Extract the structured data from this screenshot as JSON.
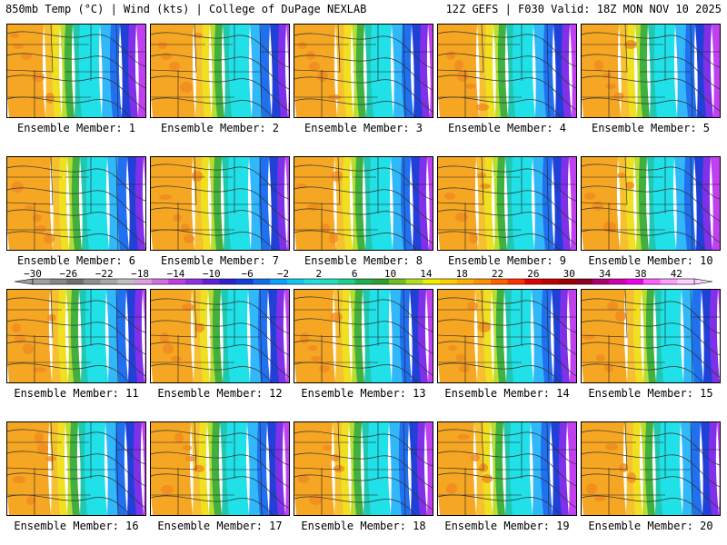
{
  "header": {
    "left": "850mb Temp (°C) | Wind (kts) | College of DuPage NEXLAB",
    "right": "12Z GEFS | F030 Valid: 18Z MON NOV 10 2025"
  },
  "colorbar": {
    "tick_labels": [
      "−30",
      "−26",
      "−22",
      "−18",
      "−14",
      "−10",
      "−6",
      "−2",
      "2",
      "6",
      "10",
      "14",
      "18",
      "22",
      "26",
      "30",
      "34",
      "38",
      "42"
    ],
    "colors": [
      "#a0a0a0",
      "#888888",
      "#707070",
      "#909090",
      "#a8a8a8",
      "#c0c0c0",
      "#e0a0e0",
      "#d070e0",
      "#c040e0",
      "#9030e0",
      "#6020d8",
      "#3020d0",
      "#1040e0",
      "#1070f0",
      "#10a0ff",
      "#10c8f0",
      "#20e0e0",
      "#20e0c0",
      "#20d090",
      "#20b050",
      "#30a030",
      "#70c020",
      "#b0e020",
      "#f0f000",
      "#ffd000",
      "#ffb000",
      "#ff9000",
      "#ff6000",
      "#ff3000",
      "#e00000",
      "#c00000",
      "#a00000",
      "#900020",
      "#b00070",
      "#d000b0",
      "#f000f0",
      "#ff60ff",
      "#ffa0ff",
      "#ffd0ff"
    ]
  },
  "members": [
    {
      "label": "Ensemble Member: 1"
    },
    {
      "label": "Ensemble Member: 2"
    },
    {
      "label": "Ensemble Member: 3"
    },
    {
      "label": "Ensemble Member: 4"
    },
    {
      "label": "Ensemble Member: 5"
    },
    {
      "label": "Ensemble Member: 6"
    },
    {
      "label": "Ensemble Member: 7"
    },
    {
      "label": "Ensemble Member: 8"
    },
    {
      "label": "Ensemble Member: 9"
    },
    {
      "label": "Ensemble Member: 10"
    },
    {
      "label": "Ensemble Member: 11"
    },
    {
      "label": "Ensemble Member: 12"
    },
    {
      "label": "Ensemble Member: 13"
    },
    {
      "label": "Ensemble Member: 14"
    },
    {
      "label": "Ensemble Member: 15"
    },
    {
      "label": "Ensemble Member: 16"
    },
    {
      "label": "Ensemble Member: 17"
    },
    {
      "label": "Ensemble Member: 18"
    },
    {
      "label": "Ensemble Member: 19"
    },
    {
      "label": "Ensemble Member: 20"
    }
  ],
  "map_palette": {
    "orange": "#f5a623",
    "light_orange": "#f7c030",
    "yellow": "#f0e020",
    "yellow_green": "#b8dc30",
    "green": "#40b040",
    "dark_green": "#2a9a3a",
    "teal": "#20c8b0",
    "cyan": "#20e0e8",
    "light_blue": "#30b8f8",
    "blue": "#2070f0",
    "dark_blue": "#2040d8",
    "purple": "#8030e8",
    "magenta": "#c040f0"
  }
}
